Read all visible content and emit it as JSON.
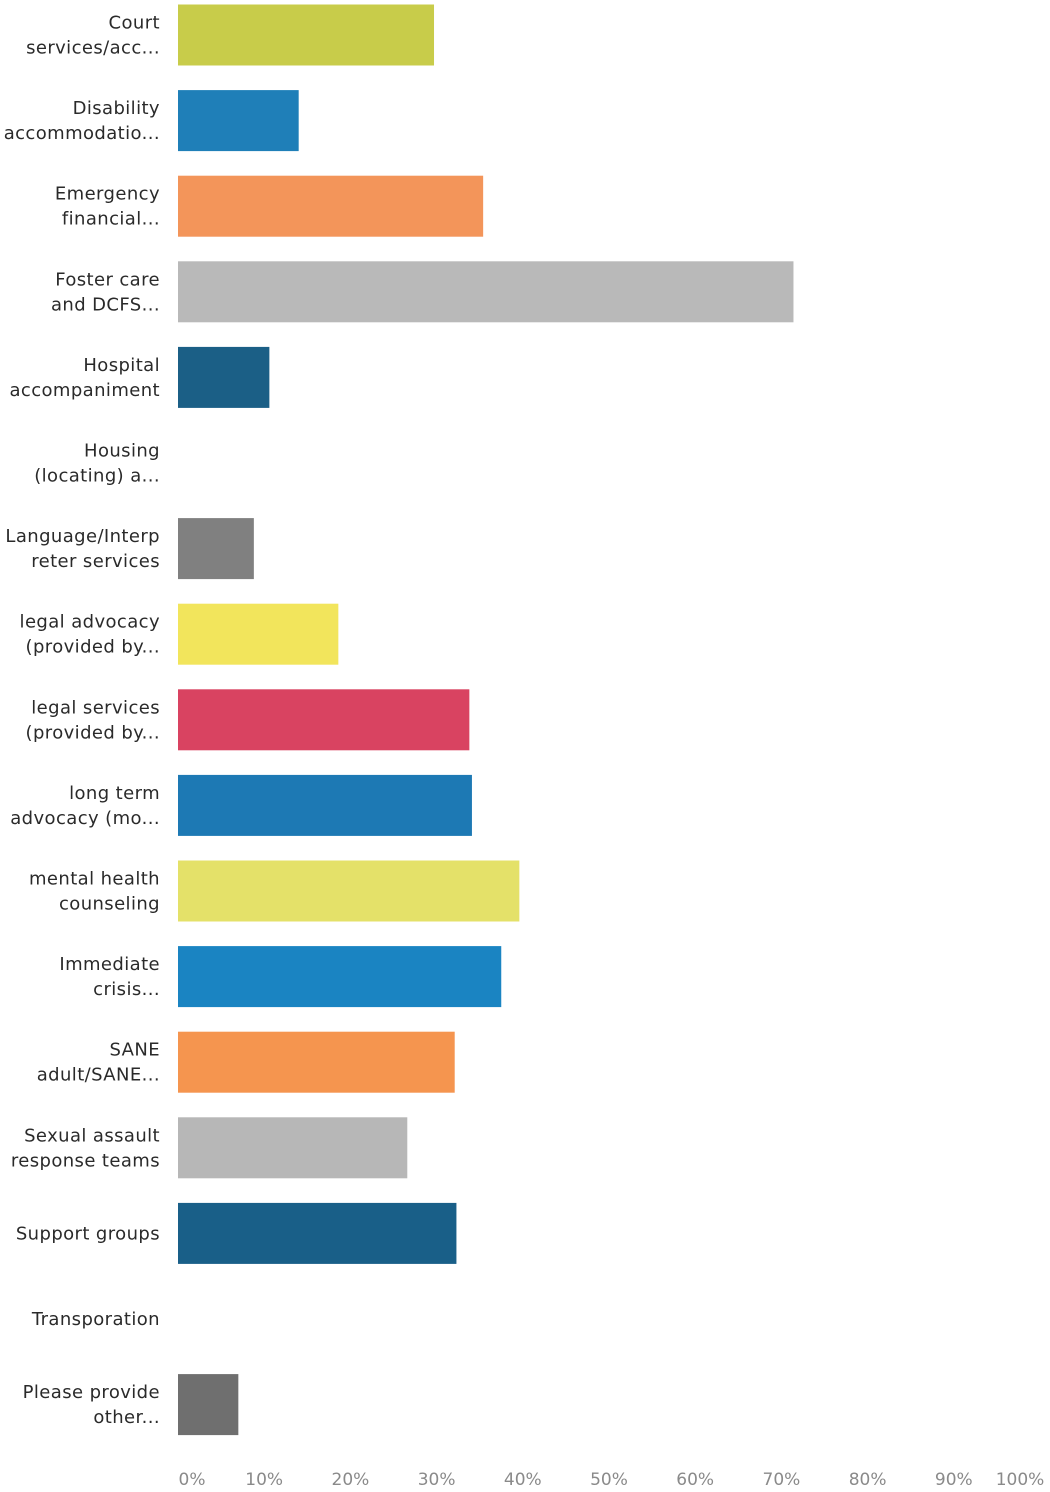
{
  "chart_data": {
    "type": "bar",
    "orientation": "horizontal",
    "categories": [
      [
        "Court",
        "services/acc..."
      ],
      [
        "Disability",
        "accommodatio..."
      ],
      [
        "Emergency",
        "financial..."
      ],
      [
        "Foster care",
        "and DCFS..."
      ],
      [
        "Hospital",
        "accompaniment"
      ],
      [
        "Housing",
        "(locating) a..."
      ],
      [
        "Language/Interp",
        "reter services"
      ],
      [
        "legal advocacy",
        "(provided by..."
      ],
      [
        "legal services",
        "(provided by..."
      ],
      [
        "long term",
        "advocacy (mo..."
      ],
      [
        "mental health",
        "counseling"
      ],
      [
        "Immediate",
        "crisis..."
      ],
      [
        "SANE",
        "adult/SANE..."
      ],
      [
        "Sexual assault",
        "response teams"
      ],
      [
        "Support groups"
      ],
      [
        "Transporation"
      ],
      [
        "Please provide",
        "other..."
      ]
    ],
    "values": [
      29.7,
      14.0,
      35.4,
      71.4,
      10.6,
      0,
      8.8,
      18.6,
      33.8,
      34.1,
      39.6,
      37.5,
      32.1,
      26.6,
      32.3,
      0,
      7.0
    ],
    "colors": [
      "#c8cc4a",
      "#1f7fb8",
      "#f3955a",
      "#b9b9b9",
      "#1b5f86",
      "#2a8ac0",
      "#808080",
      "#f2e55c",
      "#d94361",
      "#1d79b4",
      "#e4e169",
      "#1a84c2",
      "#f5954f",
      "#b7b7b7",
      "#195f88",
      "#dddd66",
      "#6f6f6f"
    ],
    "xlim": [
      0,
      100
    ],
    "xticks": [
      "0%",
      "10%",
      "20%",
      "30%",
      "40%",
      "50%",
      "60%",
      "70%",
      "80%",
      "90%",
      "100%"
    ],
    "grid": false,
    "legend": "none"
  }
}
